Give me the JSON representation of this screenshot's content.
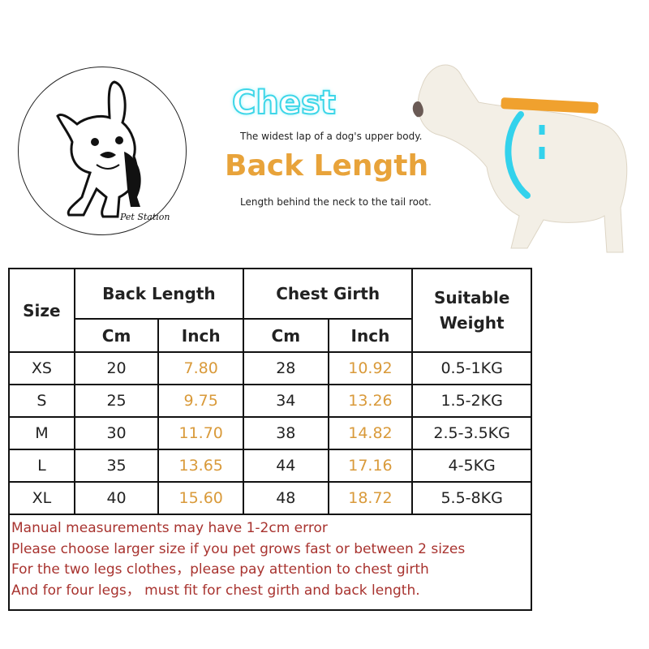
{
  "logo": {
    "text": "Pet Station"
  },
  "legend": {
    "chest_title": "Chest",
    "chest_desc": "The widest lap of a dog's upper body.",
    "back_title": "Back Length",
    "back_desc": "Length behind the neck to the tail root.",
    "colors": {
      "chest": "#3ed6e8",
      "back": "#e8a33a"
    }
  },
  "table": {
    "headers": {
      "size": "Size",
      "back_length": "Back Length",
      "chest_girth": "Chest Girth",
      "weight": "Suitable Weight",
      "cm": "Cm",
      "inch": "Inch"
    },
    "rows": [
      {
        "size": "XS",
        "back_cm": "20",
        "back_in": "7.80",
        "chest_cm": "28",
        "chest_in": "10.92",
        "weight": "0.5-1KG"
      },
      {
        "size": "S",
        "back_cm": "25",
        "back_in": "9.75",
        "chest_cm": "34",
        "chest_in": "13.26",
        "weight": "1.5-2KG"
      },
      {
        "size": "M",
        "back_cm": "30",
        "back_in": "11.70",
        "chest_cm": "38",
        "chest_in": "14.82",
        "weight": "2.5-3.5KG"
      },
      {
        "size": "L",
        "back_cm": "35",
        "back_in": "13.65",
        "chest_cm": "44",
        "chest_in": "17.16",
        "weight": "4-5KG"
      },
      {
        "size": "XL",
        "back_cm": "40",
        "back_in": "15.60",
        "chest_cm": "48",
        "chest_in": "18.72",
        "weight": "5.5-8KG"
      }
    ],
    "notes": [
      "Manual measurements may have 1-2cm error",
      "Please choose larger size if you pet grows fast or between 2 sizes",
      "For the two legs clothes，please pay attention to chest girth",
      "And for four legs， must fit for chest girth and back length."
    ]
  }
}
